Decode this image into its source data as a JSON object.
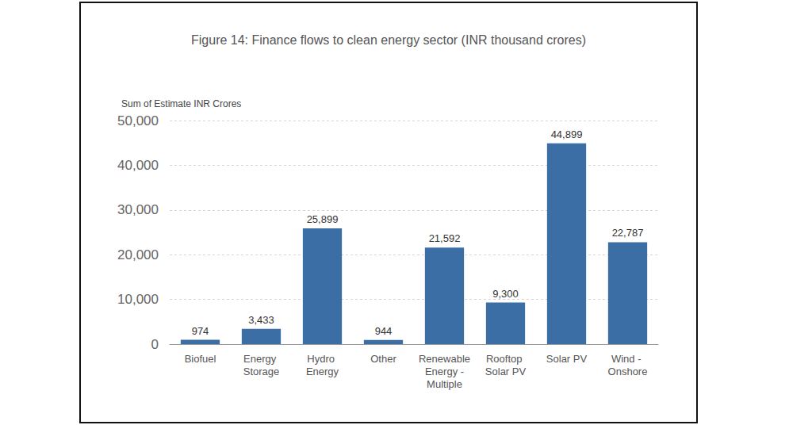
{
  "chart_data": {
    "type": "bar",
    "title": "Figure 14: Finance flows to clean energy sector (INR thousand crores)",
    "ylabel": "Sum of Estimate INR Crores",
    "categories": [
      "Biofuel",
      "Energy Storage",
      "Hydro Energy",
      "Other",
      "Renewable Energy - Multiple",
      "Rooftop Solar PV",
      "Solar PV",
      "Wind - Onshore"
    ],
    "values": [
      974,
      3433,
      25899,
      944,
      21592,
      9300,
      44899,
      22787
    ],
    "value_labels": [
      "974",
      "3,433",
      "25,899",
      "944",
      "21,592",
      "9,300",
      "44,899",
      "22,787"
    ],
    "color": "#3b6ea5",
    "ylim": [
      0,
      50000
    ],
    "yticks": [
      0,
      {
        "value": 10000,
        "label": "10,000"
      },
      {
        "value": 20000,
        "label": "20,000"
      },
      {
        "value": 30000,
        "label": "30,000"
      },
      {
        "value": 40000,
        "label": "40,000"
      },
      {
        "value": 50000,
        "label": "50,000"
      }
    ],
    "grid": true,
    "data_labels": true
  }
}
